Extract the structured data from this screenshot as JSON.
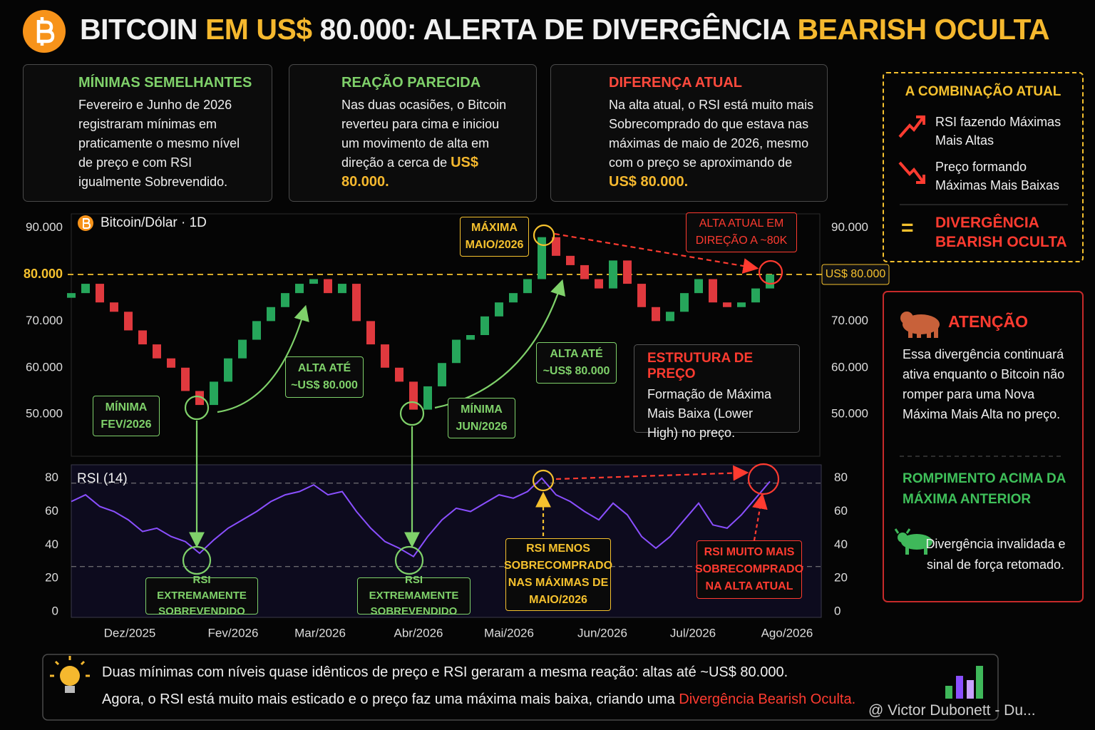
{
  "header": {
    "title_parts": [
      "BITCOIN",
      "EM US$",
      "80.000: ALERTA DE DIVERGÊNCIA",
      "BEARISH OCULTA"
    ]
  },
  "cards": [
    {
      "title": "MÍNIMAS SEMELHANTES",
      "text": "Fevereiro e Junho de 2026 registraram mínimas em praticamente o mesmo nível de preço e com RSI igualmente Sobrevendido."
    },
    {
      "title": "REAÇÃO PARECIDA",
      "text": "Nas duas ocasiões, o Bitcoin reverteu para cima e iniciou um movimento de alta em direção a cerca de",
      "highlight": "US$ 80.000."
    },
    {
      "title": "DIFERENÇA ATUAL",
      "text": "Na alta atual, o RSI está muito mais Sobrecomprado do que estava nas máximas de maio de 2026, mesmo com o preço se aproximando de",
      "highlight": "US$ 80.000."
    }
  ],
  "combo": {
    "title": "A COMBINAÇÃO ATUAL",
    "items": [
      "RSI fazendo Máximas Mais Altas",
      "Preço formando Máximas Mais Baixas"
    ],
    "equals": "=",
    "result": "DIVERGÊNCIA BEARISH OCULTA"
  },
  "chart_data": [
    {
      "type": "candlestick",
      "title": "Bitcoin/Dólar · 1D",
      "x": [
        0,
        2,
        4,
        6,
        8,
        10,
        12,
        14,
        16,
        18,
        20,
        22,
        24,
        26,
        28,
        30,
        32,
        34,
        36,
        38,
        40,
        42,
        44,
        46,
        48,
        50,
        52,
        54,
        56,
        58,
        60,
        62,
        64,
        66,
        68,
        70,
        72,
        74,
        76,
        78,
        80,
        82,
        84,
        86,
        88,
        90,
        92,
        94,
        96,
        98
      ],
      "open": [
        75000,
        76000,
        78000,
        74000,
        72000,
        68000,
        65000,
        62000,
        60000,
        55000,
        52000,
        57000,
        62000,
        66000,
        70000,
        73000,
        76000,
        78000,
        79000,
        76000,
        78000,
        70000,
        65000,
        60000,
        57000,
        51000,
        56000,
        61000,
        66000,
        67000,
        71000,
        74000,
        76000,
        79000,
        88000,
        84000,
        82000,
        79000,
        77000,
        83000,
        78000,
        73000,
        70000,
        72000,
        76000,
        79000,
        74000,
        73000,
        74000,
        77000
      ],
      "close": [
        76000,
        78000,
        74000,
        72000,
        68000,
        65000,
        62000,
        60000,
        55000,
        52000,
        57000,
        62000,
        66000,
        70000,
        73000,
        76000,
        78000,
        79000,
        76000,
        78000,
        70000,
        65000,
        60000,
        57000,
        51000,
        56000,
        61000,
        66000,
        67000,
        71000,
        74000,
        76000,
        79000,
        88000,
        84000,
        82000,
        79000,
        77000,
        83000,
        78000,
        73000,
        70000,
        72000,
        76000,
        79000,
        74000,
        73000,
        74000,
        77000,
        80000
      ],
      "up_color": "#26a65b",
      "down_color": "#e0393e",
      "xlim": [
        0,
        105
      ],
      "ylim": [
        41000,
        93000
      ],
      "yticks": [
        {
          "value": 50000,
          "label": "50.000"
        },
        {
          "value": 60000,
          "label": "60.000"
        },
        {
          "value": 70000,
          "label": "70.000"
        },
        {
          "value": 80000,
          "label": "80.000"
        },
        {
          "value": 90000,
          "label": "90.000"
        }
      ],
      "grid": false,
      "reference_line": 80000,
      "reference_label": "US$ 80.000",
      "annotations": [
        "MÁXIMA MAIO/2026",
        "ALTA ATUAL EM DIREÇÃO A ~80K",
        "ALTA ATÉ ~US$ 80.000",
        "ALTA ATÉ ~US$ 80.000",
        "MÍNIMA FEV/2026",
        "MÍNIMA JUN/2026"
      ],
      "structure": {
        "title": "ESTRUTURA DE PREÇO",
        "text": "Formação de Máxima Mais Baixa (Lower High) no preço."
      }
    },
    {
      "type": "line",
      "title": "RSI (14)",
      "x": [
        0,
        2,
        4,
        6,
        8,
        10,
        12,
        14,
        16,
        18,
        20,
        22,
        24,
        26,
        28,
        30,
        32,
        34,
        36,
        38,
        40,
        42,
        44,
        46,
        48,
        50,
        52,
        54,
        56,
        58,
        60,
        62,
        64,
        66,
        68,
        70,
        72,
        74,
        76,
        78,
        80,
        82,
        84,
        86,
        88,
        90,
        92,
        94,
        96,
        98
      ],
      "values": [
        66,
        70,
        63,
        60,
        55,
        48,
        50,
        45,
        42,
        35,
        43,
        50,
        55,
        60,
        66,
        70,
        72,
        76,
        70,
        72,
        60,
        50,
        42,
        38,
        33,
        45,
        55,
        62,
        60,
        65,
        70,
        68,
        72,
        80,
        70,
        66,
        60,
        55,
        65,
        58,
        45,
        38,
        45,
        55,
        65,
        52,
        50,
        58,
        68,
        78
      ],
      "color": "#8a4fff",
      "xlim": [
        0,
        105
      ],
      "ylim": [
        -3,
        88
      ],
      "yticks": [
        0,
        20,
        40,
        60,
        80
      ],
      "grid": false,
      "hlines": [
        77,
        27
      ],
      "xticks": [
        {
          "value": 8.2,
          "label": "Dez/2025"
        },
        {
          "value": 22.7,
          "label": "Fev/2026"
        },
        {
          "value": 34.9,
          "label": "Mar/2026"
        },
        {
          "value": 48.7,
          "label": "Abr/2026"
        },
        {
          "value": 61.4,
          "label": "Mai/2026"
        },
        {
          "value": 74.5,
          "label": "Jun/2026"
        },
        {
          "value": 87.2,
          "label": "Jul/2026"
        },
        {
          "value": 100.4,
          "label": "Ago/2026"
        }
      ],
      "annotations": [
        "RSI EXTREMAMENTE SOBREVENDIDO",
        "RSI EXTREMAMENTE SOBREVENDIDO",
        "RSI MENOS SOBRECOMPRADO NAS MÁXIMAS DE MAIO/2026",
        "RSI MUITO MAIS SOBRECOMPRADO NA ALTA ATUAL"
      ]
    }
  ],
  "attention": {
    "title": "ATENÇÃO",
    "text": "Essa divergência continuará ativa enquanto o Bitcoin não romper para uma Nova Máxima Mais Alta no preço.",
    "break_title": "ROMPIMENTO ACIMA DA MÁXIMA ANTERIOR",
    "break_text": "Divergência invalidada e sinal de força retomado."
  },
  "footer": {
    "line1": "Duas mínimas com níveis quase idênticos de preço e RSI geraram a mesma reação: altas até ~US$ 80.000.",
    "line2": "Agora, o RSI está muito mais esticado e o preço faz uma máxima mais baixa, criando uma",
    "line2_highlight": "Divergência Bearish Oculta."
  },
  "watermark": "@ Victor Dubonett - Du..."
}
